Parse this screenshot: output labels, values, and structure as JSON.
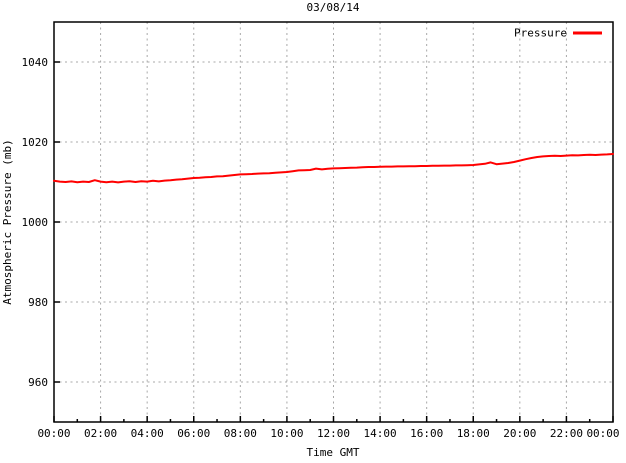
{
  "colors": {
    "background": "#ffffff",
    "border": "#000000",
    "grid": "#a8a8a8",
    "text": "#000000",
    "series_red": "#ff0000"
  },
  "chart_data": {
    "type": "line",
    "title": "03/08/14",
    "xlabel": "Time GMT",
    "ylabel": "Atmospheric Pressure (mb)",
    "grid": true,
    "xlim_hours": [
      0,
      24
    ],
    "ylim": [
      950,
      1050
    ],
    "x_tick_hours": [
      0,
      2,
      4,
      6,
      8,
      10,
      12,
      14,
      16,
      18,
      20,
      22,
      24
    ],
    "x_tick_labels": [
      "00:00",
      "02:00",
      "04:00",
      "06:00",
      "08:00",
      "10:00",
      "12:00",
      "14:00",
      "16:00",
      "18:00",
      "20:00",
      "22:00",
      "00:00"
    ],
    "x_minor_tick_hours": [
      1,
      3,
      5,
      7,
      9,
      11,
      13,
      15,
      17,
      19,
      21,
      23
    ],
    "y_ticks": [
      960,
      980,
      1000,
      1020,
      1040
    ],
    "legend": {
      "position": "top-right",
      "entries": [
        {
          "label": "Pressure",
          "color": "#ff0000"
        }
      ]
    },
    "series": [
      {
        "name": "Pressure",
        "color": "#ff0000",
        "points": [
          [
            0.0,
            1010.3
          ],
          [
            0.25,
            1010.1
          ],
          [
            0.5,
            1010.0
          ],
          [
            0.75,
            1010.15
          ],
          [
            1.0,
            1009.95
          ],
          [
            1.25,
            1010.1
          ],
          [
            1.5,
            1010.0
          ],
          [
            1.75,
            1010.45
          ],
          [
            2.0,
            1010.1
          ],
          [
            2.25,
            1009.95
          ],
          [
            2.5,
            1010.1
          ],
          [
            2.75,
            1009.9
          ],
          [
            3.0,
            1010.1
          ],
          [
            3.25,
            1010.2
          ],
          [
            3.5,
            1010.0
          ],
          [
            3.75,
            1010.2
          ],
          [
            4.0,
            1010.1
          ],
          [
            4.25,
            1010.3
          ],
          [
            4.5,
            1010.15
          ],
          [
            4.75,
            1010.35
          ],
          [
            5.0,
            1010.45
          ],
          [
            5.25,
            1010.6
          ],
          [
            5.5,
            1010.7
          ],
          [
            5.75,
            1010.85
          ],
          [
            6.0,
            1011.0
          ],
          [
            6.25,
            1011.05
          ],
          [
            6.5,
            1011.2
          ],
          [
            6.75,
            1011.25
          ],
          [
            7.0,
            1011.4
          ],
          [
            7.25,
            1011.45
          ],
          [
            7.5,
            1011.6
          ],
          [
            7.75,
            1011.75
          ],
          [
            8.0,
            1011.9
          ],
          [
            8.25,
            1011.95
          ],
          [
            8.5,
            1012.0
          ],
          [
            8.75,
            1012.1
          ],
          [
            9.0,
            1012.15
          ],
          [
            9.25,
            1012.2
          ],
          [
            9.5,
            1012.3
          ],
          [
            9.75,
            1012.4
          ],
          [
            10.0,
            1012.5
          ],
          [
            10.25,
            1012.7
          ],
          [
            10.5,
            1012.9
          ],
          [
            10.75,
            1012.95
          ],
          [
            11.0,
            1013.0
          ],
          [
            11.25,
            1013.35
          ],
          [
            11.5,
            1013.15
          ],
          [
            11.75,
            1013.3
          ],
          [
            12.0,
            1013.4
          ],
          [
            12.25,
            1013.45
          ],
          [
            12.5,
            1013.5
          ],
          [
            12.75,
            1013.55
          ],
          [
            13.0,
            1013.6
          ],
          [
            13.25,
            1013.7
          ],
          [
            13.5,
            1013.75
          ],
          [
            13.75,
            1013.75
          ],
          [
            14.0,
            1013.8
          ],
          [
            14.25,
            1013.85
          ],
          [
            14.5,
            1013.85
          ],
          [
            14.75,
            1013.9
          ],
          [
            15.0,
            1013.9
          ],
          [
            15.25,
            1013.95
          ],
          [
            15.5,
            1013.95
          ],
          [
            15.75,
            1014.0
          ],
          [
            16.0,
            1014.0
          ],
          [
            16.25,
            1014.05
          ],
          [
            16.5,
            1014.05
          ],
          [
            16.75,
            1014.1
          ],
          [
            17.0,
            1014.1
          ],
          [
            17.25,
            1014.15
          ],
          [
            17.5,
            1014.15
          ],
          [
            17.75,
            1014.2
          ],
          [
            18.0,
            1014.25
          ],
          [
            18.25,
            1014.4
          ],
          [
            18.5,
            1014.55
          ],
          [
            18.75,
            1014.9
          ],
          [
            19.0,
            1014.45
          ],
          [
            19.25,
            1014.6
          ],
          [
            19.5,
            1014.75
          ],
          [
            19.75,
            1015.0
          ],
          [
            20.0,
            1015.35
          ],
          [
            20.25,
            1015.7
          ],
          [
            20.5,
            1016.0
          ],
          [
            20.75,
            1016.25
          ],
          [
            21.0,
            1016.4
          ],
          [
            21.25,
            1016.5
          ],
          [
            21.5,
            1016.55
          ],
          [
            21.75,
            1016.5
          ],
          [
            22.0,
            1016.6
          ],
          [
            22.25,
            1016.7
          ],
          [
            22.5,
            1016.65
          ],
          [
            22.75,
            1016.75
          ],
          [
            23.0,
            1016.8
          ],
          [
            23.25,
            1016.75
          ],
          [
            23.5,
            1016.85
          ],
          [
            23.75,
            1016.9
          ],
          [
            24.0,
            1017.0
          ]
        ]
      }
    ]
  }
}
